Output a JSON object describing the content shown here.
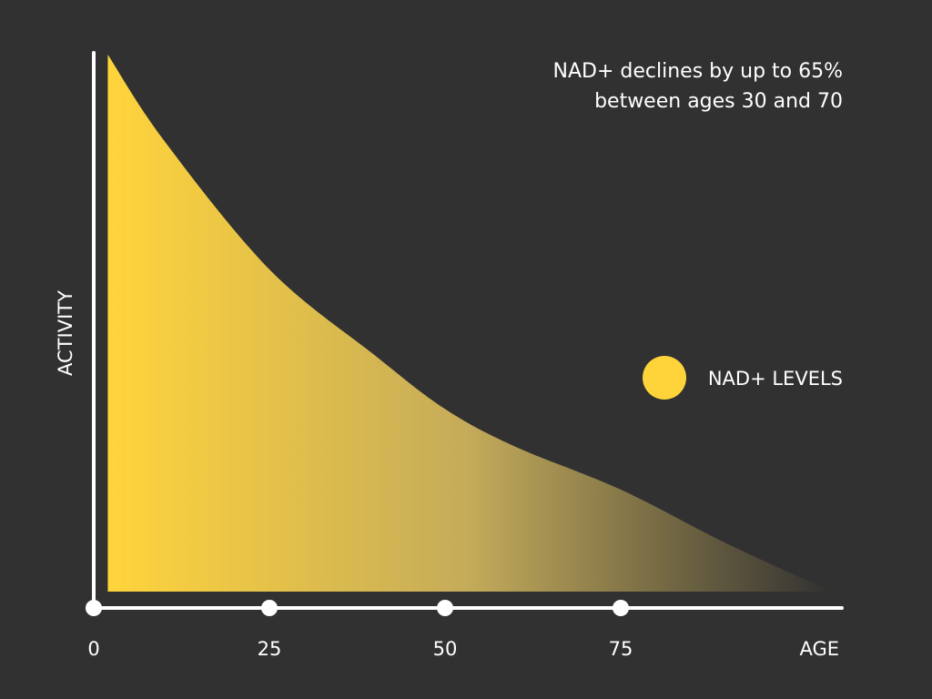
{
  "chart_data": {
    "type": "area",
    "title": "",
    "annotation": [
      "NAD+ declines by up to 65%",
      "between ages 30 and 70"
    ],
    "xlabel": "AGE",
    "ylabel": "ACTIVITY",
    "xlim": [
      0,
      106
    ],
    "ylim": [
      0,
      100
    ],
    "x_ticks": [
      0,
      25,
      50,
      75
    ],
    "x_tick_labels": [
      "0",
      "25",
      "50",
      "75"
    ],
    "grid": false,
    "legend": {
      "placement": "right",
      "entries": [
        {
          "label": "NAD+ LEVELS",
          "color": "#ffd43b"
        }
      ]
    },
    "series": [
      {
        "name": "NAD+ LEVELS",
        "color": "#ffd43b",
        "x": [
          2,
          10,
          25,
          40,
          50,
          60,
          75,
          90,
          105
        ],
        "y": [
          100,
          84,
          60,
          44,
          34,
          27,
          19,
          9,
          0
        ]
      }
    ]
  },
  "colors": {
    "background": "#313131",
    "axis": "#ffffff",
    "accent": "#ffd43b"
  }
}
